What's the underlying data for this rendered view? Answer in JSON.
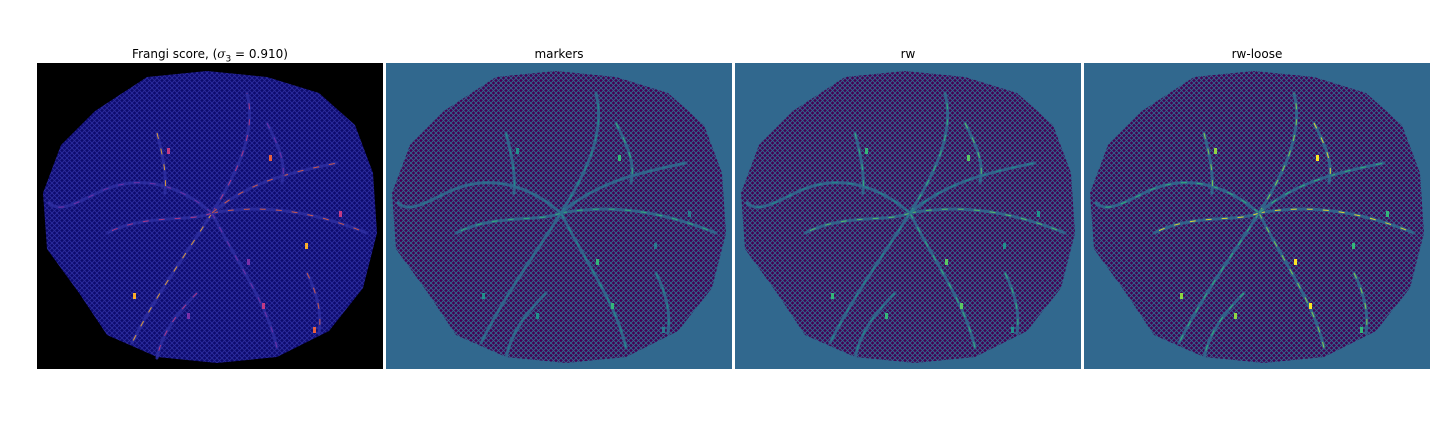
{
  "figure": {
    "panels": [
      {
        "id": "frangi",
        "title_prefix": "Frangi score, (",
        "title_symbol": "σ",
        "title_sub": "3",
        "title_suffix": " = 0.910)",
        "background": "#000000",
        "fill": "#0d0a6e",
        "mesh": "#2c2c9e",
        "vessel_colors": [
          "#7b2fa8",
          "#c43a83",
          "#e8603d",
          "#fcae2a"
        ]
      },
      {
        "id": "markers",
        "title": "markers",
        "background": "#31688e",
        "fill": "#440154",
        "mesh": "#31688e",
        "vessel_colors": [
          "#2a788e",
          "#21918c",
          "#35b779"
        ]
      },
      {
        "id": "rw",
        "title": "rw",
        "background": "#31688e",
        "fill": "#440154",
        "mesh": "#31688e",
        "vessel_colors": [
          "#21918c",
          "#35b779",
          "#5ec962"
        ]
      },
      {
        "id": "rw-loose",
        "title": "rw-loose",
        "background": "#31688e",
        "fill": "#440154",
        "mesh": "#31688e",
        "vessel_colors": [
          "#35b779",
          "#90d743",
          "#fde725"
        ]
      }
    ]
  }
}
